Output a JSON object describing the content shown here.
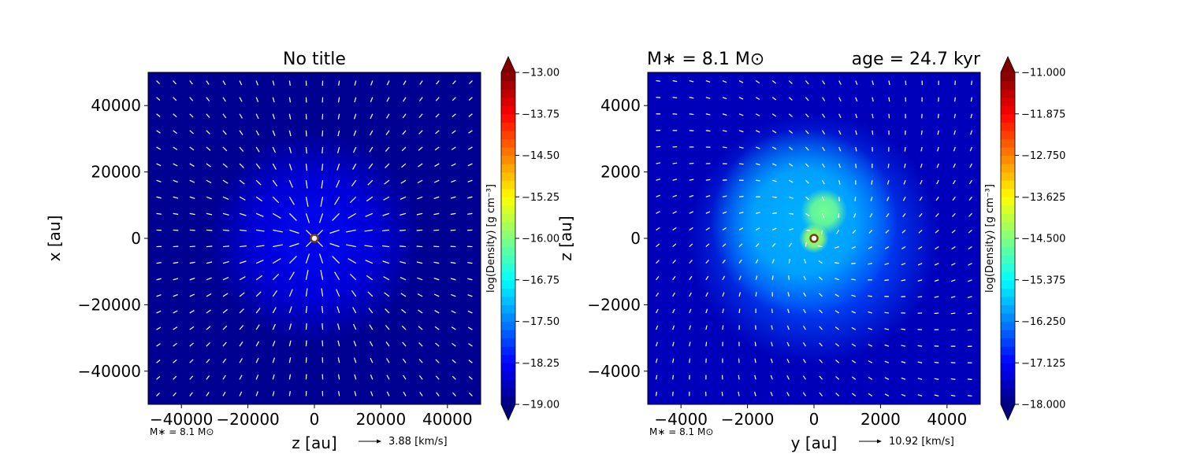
{
  "chart_data": [
    {
      "type": "heatmap",
      "title": "No title",
      "xlabel": "z [au]",
      "ylabel": "x [au]",
      "xlim": [
        -50000,
        50000
      ],
      "ylim": [
        -50000,
        50000
      ],
      "xticks": [
        -40000,
        -20000,
        0,
        20000,
        40000
      ],
      "yticks": [
        -40000,
        -20000,
        0,
        20000,
        40000
      ],
      "colorbar": {
        "label": "log(Density) [g cm⁻³]",
        "min": -19.0,
        "max": -13.0,
        "ticks": [
          "−13.00",
          "−13.75",
          "−14.50",
          "−15.25",
          "−16.00",
          "−16.75",
          "−17.50",
          "−18.25",
          "−19.00"
        ],
        "tick_values": [
          -13.0,
          -13.75,
          -14.5,
          -15.25,
          -16.0,
          -16.75,
          -17.5,
          -18.25,
          -19.0
        ],
        "extend": "both"
      },
      "colormap": "jet",
      "background_level": -18.9,
      "features": [
        {
          "x": 0,
          "y": 0,
          "level": -16.2,
          "spread": 4000
        },
        {
          "x": 0,
          "y": 0,
          "level": -17.6,
          "spread": 14000
        },
        {
          "x": 0,
          "y": 0,
          "level": -18.4,
          "spread": 32000
        }
      ],
      "star": {
        "x": 0,
        "y": 0
      },
      "note": "M∗ = 8.1 M⊙",
      "vector_key": "3.88 [km/s]",
      "vector_field": "radial"
    },
    {
      "type": "heatmap",
      "title_left": "M∗ = 8.1 M⊙",
      "title_right": "age = 24.7 kyr",
      "xlabel": "y [au]",
      "ylabel": "z [au]",
      "xlim": [
        -5000,
        5000
      ],
      "ylim": [
        -5000,
        5000
      ],
      "xticks": [
        -4000,
        -2000,
        0,
        2000,
        4000
      ],
      "yticks": [
        -4000,
        -2000,
        0,
        2000,
        4000
      ],
      "colorbar": {
        "label": "log(Density) [g cm⁻³]",
        "min": -18.0,
        "max": -11.0,
        "ticks": [
          "−11.000",
          "−11.875",
          "−12.750",
          "−13.625",
          "−14.500",
          "−15.375",
          "−16.250",
          "−17.125",
          "−18.000"
        ],
        "tick_values": [
          -11.0,
          -11.875,
          -12.75,
          -13.625,
          -14.5,
          -15.375,
          -16.25,
          -17.125,
          -18.0
        ],
        "extend": "both"
      },
      "colormap": "jet",
      "background_level": -17.6,
      "features": [
        {
          "x": 0,
          "y": 0,
          "level": -16.6,
          "spread": 3800
        },
        {
          "x": -300,
          "y": 500,
          "level": -15.9,
          "spread": 2800
        },
        {
          "x": 300,
          "y": 800,
          "level": -14.6,
          "spread": 700
        },
        {
          "x": 0,
          "y": 0,
          "level": -14.3,
          "spread": 450
        }
      ],
      "star": {
        "x": 0,
        "y": 0
      },
      "note": "M∗ = 8.1 M⊙",
      "vector_key": "10.92 [km/s]",
      "vector_field": "swirl"
    }
  ]
}
